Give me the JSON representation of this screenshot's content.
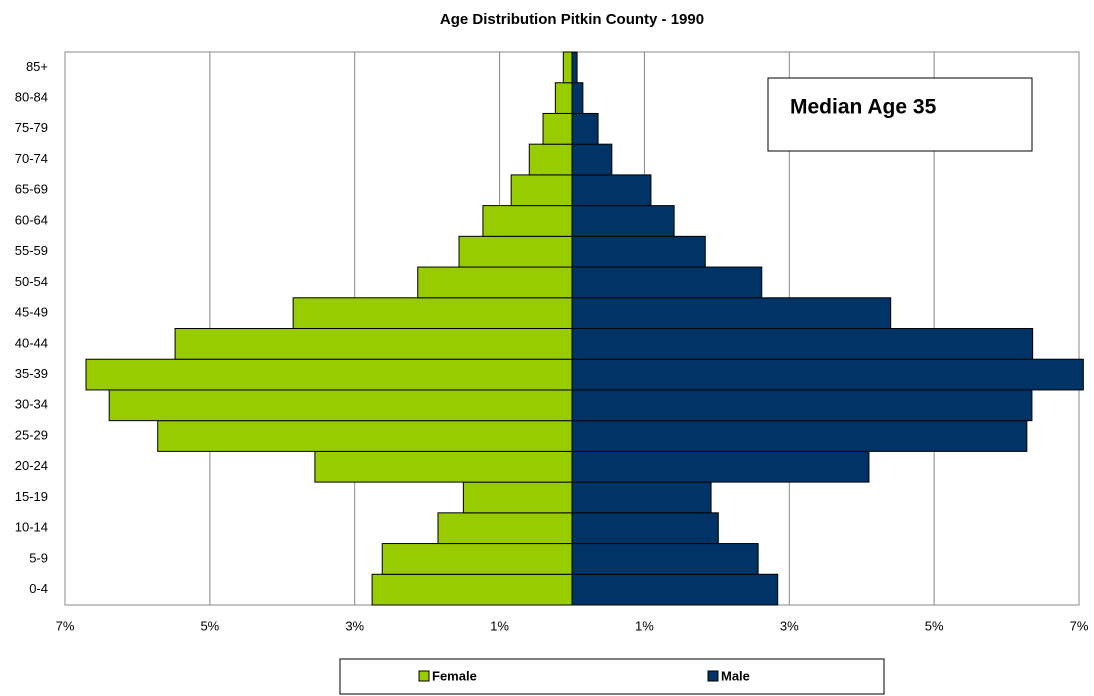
{
  "chart_data": {
    "type": "pyramid",
    "title": "Age Distribution Pitkin County - 1990",
    "categories": [
      "0-4",
      "5-9",
      "10-14",
      "15-19",
      "20-24",
      "25-29",
      "30-34",
      "35-39",
      "40-44",
      "45-49",
      "50-54",
      "55-59",
      "60-64",
      "65-69",
      "70-74",
      "75-79",
      "80-84",
      "85+"
    ],
    "series": [
      {
        "name": "Female",
        "color": "#99cc00",
        "values": [
          -2.76,
          -2.62,
          -1.85,
          -1.5,
          -3.55,
          -5.72,
          -6.39,
          -6.71,
          -5.48,
          -3.85,
          -2.13,
          -1.56,
          -1.23,
          -0.84,
          -0.59,
          -0.4,
          -0.23,
          -0.12
        ]
      },
      {
        "name": "Male",
        "color": "#003366",
        "values": [
          2.84,
          2.57,
          2.02,
          1.92,
          4.1,
          6.28,
          6.35,
          7.06,
          6.36,
          4.4,
          2.62,
          1.84,
          1.41,
          1.09,
          0.55,
          0.36,
          0.15,
          0.07
        ]
      }
    ],
    "xlim": [
      -7,
      7
    ],
    "xticks": [
      {
        "value": -7,
        "label": "7%"
      },
      {
        "value": -5,
        "label": "5%"
      },
      {
        "value": -3,
        "label": "3%"
      },
      {
        "value": -1,
        "label": "1%"
      },
      {
        "value": 1,
        "label": "1%"
      },
      {
        "value": 3,
        "label": "3%"
      },
      {
        "value": 5,
        "label": "5%"
      },
      {
        "value": 7,
        "label": "7%"
      }
    ],
    "grid": true,
    "legend": "bottom",
    "annotations": [
      "Median Age 35"
    ]
  }
}
